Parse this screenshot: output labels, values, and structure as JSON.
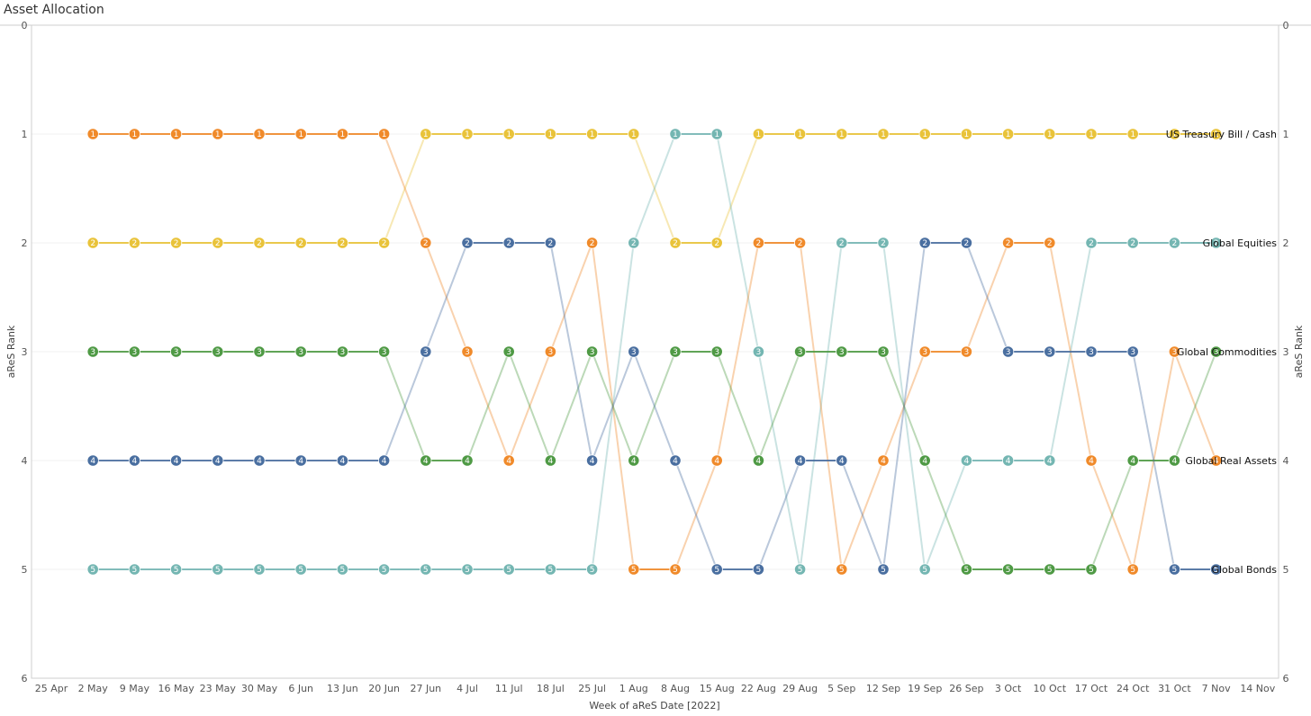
{
  "chart_data": {
    "type": "line",
    "title": "Asset Allocation",
    "xlabel": "Week of aReS Date [2022]",
    "ylabel": "aReS Rank",
    "ylim": [
      0,
      6
    ],
    "y_inverted": true,
    "yticks": [
      "0",
      "1",
      "2",
      "3",
      "4",
      "5",
      "6"
    ],
    "categories": [
      "25 Apr",
      "2 May",
      "9 May",
      "16 May",
      "23 May",
      "30 May",
      "6 Jun",
      "13 Jun",
      "20 Jun",
      "27 Jun",
      "4 Jul",
      "11 Jul",
      "18 Jul",
      "25 Jul",
      "1 Aug",
      "8 Aug",
      "15 Aug",
      "22 Aug",
      "29 Aug",
      "5 Sep",
      "12 Sep",
      "19 Sep",
      "26 Sep",
      "3 Oct",
      "10 Oct",
      "17 Oct",
      "24 Oct",
      "31 Oct",
      "7 Nov",
      "14 Nov"
    ],
    "series": [
      {
        "name": "US Treasury Bill / Cash",
        "color": "#E9C33A",
        "values": [
          null,
          2,
          2,
          2,
          2,
          2,
          2,
          2,
          2,
          1,
          1,
          1,
          1,
          1,
          1,
          2,
          2,
          1,
          1,
          1,
          1,
          1,
          1,
          1,
          1,
          1,
          1,
          1,
          1,
          null
        ]
      },
      {
        "name": "Global Equities",
        "color": "#74B6B2",
        "values": [
          null,
          5,
          5,
          5,
          5,
          5,
          5,
          5,
          5,
          5,
          5,
          5,
          5,
          5,
          2,
          1,
          1,
          3,
          5,
          2,
          2,
          5,
          4,
          4,
          4,
          2,
          2,
          2,
          2,
          null
        ]
      },
      {
        "name": "Global Real Assets",
        "color": "#F08A2A",
        "values": [
          null,
          1,
          1,
          1,
          1,
          1,
          1,
          1,
          1,
          2,
          3,
          4,
          3,
          2,
          5,
          5,
          4,
          2,
          2,
          5,
          4,
          3,
          3,
          2,
          2,
          4,
          5,
          3,
          4,
          null
        ]
      },
      {
        "name": "Global Commodities",
        "color": "#4F9A45",
        "values": [
          null,
          3,
          3,
          3,
          3,
          3,
          3,
          3,
          3,
          4,
          4,
          3,
          4,
          3,
          4,
          3,
          3,
          4,
          3,
          3,
          3,
          4,
          5,
          5,
          5,
          5,
          4,
          4,
          3,
          null
        ]
      },
      {
        "name": "Global Bonds",
        "color": "#4A6FA0",
        "values": [
          null,
          4,
          4,
          4,
          4,
          4,
          4,
          4,
          4,
          3,
          2,
          2,
          2,
          4,
          3,
          4,
          5,
          5,
          4,
          4,
          5,
          2,
          2,
          3,
          3,
          3,
          3,
          5,
          5,
          null
        ]
      }
    ],
    "legend": "inline-right"
  }
}
